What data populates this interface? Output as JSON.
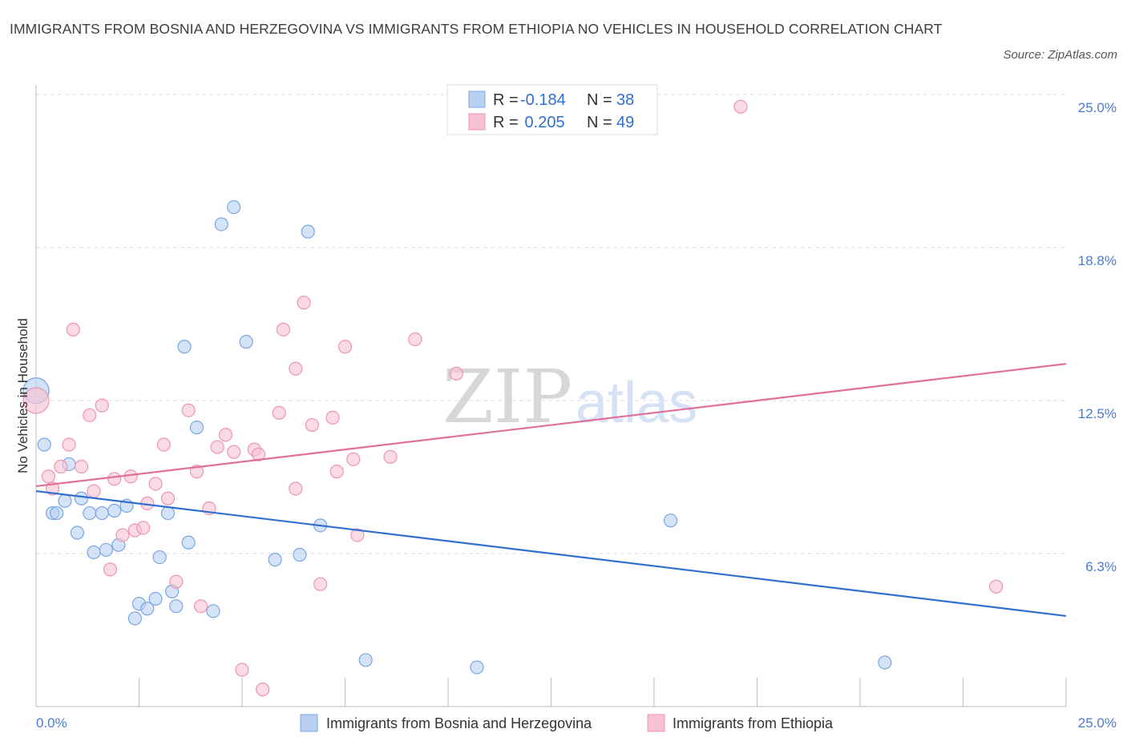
{
  "header": {
    "title": "IMMIGRANTS FROM BOSNIA AND HERZEGOVINA VS IMMIGRANTS FROM ETHIOPIA NO VEHICLES IN HOUSEHOLD CORRELATION CHART",
    "source": "Source: ZipAtlas.com"
  },
  "watermark": {
    "part1": "ZIP",
    "part2": "atlas"
  },
  "legend": {
    "rows": [
      {
        "r_label": "R = ",
        "r_value": "-0.184",
        "n_label": "N = ",
        "n_value": "38"
      },
      {
        "r_label": "R = ",
        "r_value": " 0.205",
        "n_label": "N = ",
        "n_value": "49"
      }
    ]
  },
  "colors": {
    "bosnia_fill": "#b8d1f3",
    "bosnia_stroke": "#7aa6e0",
    "bosnia_line": "#2f6fcf",
    "ethiopia_fill": "#f7c3d2",
    "ethiopia_stroke": "#ec95b0",
    "ethiopia_line": "#e0709a",
    "tick_text": "#4a7bd0",
    "grid": "#dddddd"
  },
  "chart_data": {
    "type": "scatter",
    "title": "IMMIGRANTS FROM BOSNIA AND HERZEGOVINA VS IMMIGRANTS FROM ETHIOPIA NO VEHICLES IN HOUSEHOLD CORRELATION CHART",
    "xlabel": "",
    "ylabel": "No Vehicles in Household",
    "xlim": [
      0,
      25
    ],
    "ylim": [
      0,
      25
    ],
    "x_tick_labels": [
      "0.0%",
      "25.0%"
    ],
    "y_ticks": [
      {
        "value": 6.25,
        "label": "6.3%"
      },
      {
        "value": 12.5,
        "label": "12.5%"
      },
      {
        "value": 18.75,
        "label": "18.8%"
      },
      {
        "value": 25.0,
        "label": "25.0%"
      }
    ],
    "grid": "horizontal dashed",
    "legend_position": "top-center",
    "series": [
      {
        "name": "Immigrants from Bosnia and Herzegovina",
        "R": -0.184,
        "N": 38,
        "trend": {
          "x": [
            0,
            25
          ],
          "y": [
            8.8,
            3.7
          ]
        },
        "points": [
          {
            "x": 0.0,
            "y": 12.9,
            "big": true
          },
          {
            "x": 0.2,
            "y": 10.7
          },
          {
            "x": 0.4,
            "y": 7.9
          },
          {
            "x": 0.5,
            "y": 7.9
          },
          {
            "x": 0.7,
            "y": 8.4
          },
          {
            "x": 0.8,
            "y": 9.9
          },
          {
            "x": 1.0,
            "y": 7.1
          },
          {
            "x": 1.1,
            "y": 8.5
          },
          {
            "x": 1.3,
            "y": 7.9
          },
          {
            "x": 1.4,
            "y": 6.3
          },
          {
            "x": 1.6,
            "y": 7.9
          },
          {
            "x": 1.7,
            "y": 6.4
          },
          {
            "x": 1.9,
            "y": 8.0
          },
          {
            "x": 2.0,
            "y": 6.6
          },
          {
            "x": 2.2,
            "y": 8.2
          },
          {
            "x": 2.4,
            "y": 3.6
          },
          {
            "x": 2.5,
            "y": 4.2
          },
          {
            "x": 2.7,
            "y": 4.0
          },
          {
            "x": 2.9,
            "y": 4.4
          },
          {
            "x": 3.0,
            "y": 6.1
          },
          {
            "x": 3.2,
            "y": 7.9
          },
          {
            "x": 3.3,
            "y": 4.7
          },
          {
            "x": 3.4,
            "y": 4.1
          },
          {
            "x": 3.6,
            "y": 14.7
          },
          {
            "x": 3.7,
            "y": 6.7
          },
          {
            "x": 3.9,
            "y": 11.4
          },
          {
            "x": 4.3,
            "y": 3.9
          },
          {
            "x": 4.5,
            "y": 19.7
          },
          {
            "x": 4.8,
            "y": 20.4
          },
          {
            "x": 5.1,
            "y": 14.9
          },
          {
            "x": 5.8,
            "y": 6.0
          },
          {
            "x": 6.4,
            "y": 6.2
          },
          {
            "x": 6.6,
            "y": 19.4
          },
          {
            "x": 6.9,
            "y": 7.4
          },
          {
            "x": 8.0,
            "y": 1.9
          },
          {
            "x": 10.7,
            "y": 1.6
          },
          {
            "x": 15.4,
            "y": 7.6
          },
          {
            "x": 20.6,
            "y": 1.8
          }
        ]
      },
      {
        "name": "Immigrants from Ethiopia",
        "R": 0.205,
        "N": 49,
        "trend": {
          "x": [
            0,
            25
          ],
          "y": [
            9.0,
            14.0
          ]
        },
        "points": [
          {
            "x": 0.0,
            "y": 12.5,
            "big": true
          },
          {
            "x": 0.3,
            "y": 9.4
          },
          {
            "x": 0.4,
            "y": 8.9
          },
          {
            "x": 0.6,
            "y": 9.8
          },
          {
            "x": 0.8,
            "y": 10.7
          },
          {
            "x": 0.9,
            "y": 15.4
          },
          {
            "x": 1.1,
            "y": 9.8
          },
          {
            "x": 1.3,
            "y": 11.9
          },
          {
            "x": 1.4,
            "y": 8.8
          },
          {
            "x": 1.6,
            "y": 12.3
          },
          {
            "x": 1.8,
            "y": 5.6
          },
          {
            "x": 1.9,
            "y": 9.3
          },
          {
            "x": 2.1,
            "y": 7.0
          },
          {
            "x": 2.3,
            "y": 9.4
          },
          {
            "x": 2.4,
            "y": 7.2
          },
          {
            "x": 2.6,
            "y": 7.3
          },
          {
            "x": 2.7,
            "y": 8.3
          },
          {
            "x": 2.9,
            "y": 9.1
          },
          {
            "x": 3.1,
            "y": 10.7
          },
          {
            "x": 3.2,
            "y": 8.5
          },
          {
            "x": 3.4,
            "y": 5.1
          },
          {
            "x": 3.7,
            "y": 12.1
          },
          {
            "x": 3.9,
            "y": 9.6
          },
          {
            "x": 4.0,
            "y": 4.1
          },
          {
            "x": 4.2,
            "y": 8.1
          },
          {
            "x": 4.4,
            "y": 10.6
          },
          {
            "x": 4.6,
            "y": 11.1
          },
          {
            "x": 4.8,
            "y": 10.4
          },
          {
            "x": 5.0,
            "y": 1.5
          },
          {
            "x": 5.3,
            "y": 10.5
          },
          {
            "x": 5.4,
            "y": 10.3
          },
          {
            "x": 5.5,
            "y": 0.7
          },
          {
            "x": 5.9,
            "y": 12.0
          },
          {
            "x": 6.0,
            "y": 15.4
          },
          {
            "x": 6.3,
            "y": 13.8
          },
          {
            "x": 6.3,
            "y": 8.9
          },
          {
            "x": 6.5,
            "y": 16.5
          },
          {
            "x": 6.7,
            "y": 11.5
          },
          {
            "x": 6.9,
            "y": 5.0
          },
          {
            "x": 7.2,
            "y": 11.8
          },
          {
            "x": 7.3,
            "y": 9.6
          },
          {
            "x": 7.5,
            "y": 14.7
          },
          {
            "x": 7.7,
            "y": 10.1
          },
          {
            "x": 7.8,
            "y": 7.0
          },
          {
            "x": 8.6,
            "y": 10.2
          },
          {
            "x": 9.2,
            "y": 15.0
          },
          {
            "x": 10.2,
            "y": 13.6
          },
          {
            "x": 17.1,
            "y": 24.5
          },
          {
            "x": 23.3,
            "y": 4.9
          }
        ]
      }
    ]
  }
}
